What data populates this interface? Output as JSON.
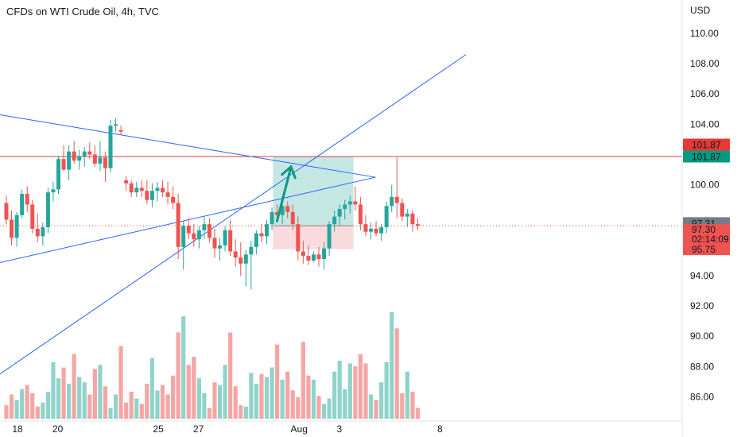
{
  "header": {
    "title": "CFDs on WTI Crude Oil, 4h, TVC"
  },
  "colors": {
    "up": "#26a69a",
    "down": "#ef5350",
    "trend": "#2962ff",
    "resistance": "#e53935",
    "target_zone": "#b2dfdb",
    "stop_zone": "#f8d7da"
  },
  "chart_data": {
    "type": "candlestick",
    "currency": "USD",
    "y_ticks": [
      "110.00",
      "108.00",
      "106.00",
      "104.00",
      "100.00",
      "94.00",
      "92.00",
      "90.00",
      "88.00",
      "86.00"
    ],
    "ylim": [
      84.4,
      112.2
    ],
    "x_ticks": [
      {
        "label": "18",
        "d": 18
      },
      {
        "label": "20",
        "d": 20
      },
      {
        "label": "25",
        "d": 25
      },
      {
        "label": "27",
        "d": 27
      },
      {
        "label": "Aug",
        "d": 32
      },
      {
        "label": "3",
        "d": 34
      },
      {
        "label": "8",
        "d": 39
      }
    ],
    "price_labels": [
      {
        "label": "101.87",
        "value": 101.87,
        "kind": "resistance"
      },
      {
        "label": "101.87",
        "value": 101.87,
        "kind": "up"
      },
      {
        "label": "97.31",
        "value": 97.31,
        "kind": "close"
      },
      {
        "label": "97.30",
        "value": 97.3,
        "kind": "down",
        "sub": "02:14:09"
      },
      {
        "label": "95.75",
        "value": 95.75,
        "kind": "down"
      }
    ],
    "resistance_level": 101.87,
    "current_price": 97.3,
    "trendlines": [
      {
        "name": "upper",
        "p1": {
          "d": 13.6,
          "y": 105.4
        },
        "p2": {
          "d": 35.8,
          "y": 100.5
        }
      },
      {
        "name": "lower",
        "p1": {
          "d": 13.6,
          "y": 93.8
        },
        "p2": {
          "d": 35.8,
          "y": 100.5
        }
      },
      {
        "name": "channel",
        "p1": {
          "d": 13.6,
          "y": 84.3
        },
        "p2": {
          "d": 40.3,
          "y": 108.6
        }
      }
    ],
    "position": {
      "d_start": 30.7,
      "d_end": 34.7,
      "entry": 97.3,
      "target": 101.87,
      "stop": 95.75
    },
    "arrow": {
      "from": {
        "d": 30.9,
        "y": 97.6
      },
      "to": {
        "d": 31.6,
        "y": 101.2
      }
    },
    "candles": [
      [
        98.8,
        99.3,
        97.4,
        97.7
      ],
      [
        97.7,
        98.3,
        96.0,
        96.5
      ],
      [
        96.5,
        98.2,
        95.9,
        98.0
      ],
      [
        98.0,
        99.7,
        97.8,
        99.4
      ],
      [
        99.4,
        99.9,
        98.2,
        98.7
      ],
      [
        98.7,
        99.0,
        96.8,
        97.1
      ],
      [
        97.1,
        98.1,
        96.2,
        96.6
      ],
      [
        96.6,
        97.5,
        96.0,
        97.2
      ],
      [
        97.2,
        99.8,
        96.8,
        99.5
      ],
      [
        99.5,
        100.2,
        98.9,
        99.7
      ],
      [
        99.7,
        101.9,
        99.4,
        101.7
      ],
      [
        101.7,
        102.6,
        100.9,
        101.0
      ],
      [
        101.0,
        102.6,
        100.3,
        102.2
      ],
      [
        102.2,
        102.9,
        101.4,
        101.6
      ],
      [
        101.6,
        102.3,
        101.0,
        101.9
      ],
      [
        101.9,
        102.5,
        101.2,
        102.2
      ],
      [
        102.2,
        102.8,
        101.7,
        102.0
      ],
      [
        102.0,
        102.6,
        101.2,
        101.4
      ],
      [
        101.4,
        102.9,
        100.9,
        101.8
      ],
      [
        101.8,
        102.2,
        100.2,
        101.1
      ],
      [
        101.1,
        104.3,
        100.8,
        103.9
      ],
      [
        103.9,
        104.4,
        103.5,
        104.0
      ],
      [
        103.6,
        103.9,
        103.3,
        103.5
      ],
      [
        100.3,
        100.6,
        99.6,
        100.1
      ],
      [
        100.1,
        100.3,
        99.2,
        99.5
      ],
      [
        99.5,
        100.2,
        99.2,
        99.8
      ],
      [
        99.8,
        100.3,
        99.2,
        99.6
      ],
      [
        99.6,
        100.3,
        98.7,
        99.0
      ],
      [
        99.0,
        100.1,
        98.5,
        99.6
      ],
      [
        99.6,
        100.2,
        98.9,
        99.8
      ],
      [
        99.8,
        100.3,
        99.2,
        99.5
      ],
      [
        99.5,
        100.2,
        98.7,
        99.2
      ],
      [
        99.2,
        99.9,
        98.4,
        98.8
      ],
      [
        98.8,
        99.4,
        95.1,
        95.9
      ],
      [
        95.9,
        97.6,
        94.4,
        97.3
      ],
      [
        97.3,
        97.8,
        96.4,
        96.8
      ],
      [
        96.8,
        97.4,
        95.9,
        96.4
      ],
      [
        96.4,
        97.3,
        95.8,
        97.0
      ],
      [
        97.0,
        97.9,
        96.4,
        97.4
      ],
      [
        97.4,
        97.8,
        96.2,
        96.5
      ],
      [
        96.5,
        97.1,
        95.2,
        95.8
      ],
      [
        95.8,
        96.5,
        95.0,
        96.0
      ],
      [
        96.0,
        97.3,
        95.6,
        97.0
      ],
      [
        97.0,
        97.7,
        95.3,
        95.6
      ],
      [
        95.6,
        96.4,
        94.6,
        95.2
      ],
      [
        95.2,
        96.2,
        94.0,
        94.8
      ],
      [
        94.8,
        95.7,
        93.3,
        95.4
      ],
      [
        95.4,
        96.3,
        93.1,
        95.9
      ],
      [
        95.9,
        97.0,
        95.4,
        96.8
      ],
      [
        96.8,
        97.4,
        96.2,
        96.6
      ],
      [
        96.6,
        97.7,
        96.1,
        97.4
      ],
      [
        97.4,
        98.5,
        97.0,
        98.2
      ],
      [
        98.2,
        98.7,
        97.5,
        98.0
      ],
      [
        98.0,
        98.9,
        97.4,
        98.6
      ],
      [
        98.6,
        98.9,
        97.8,
        98.2
      ],
      [
        98.2,
        98.7,
        97.0,
        97.4
      ],
      [
        97.4,
        97.9,
        95.0,
        95.6
      ],
      [
        95.6,
        96.3,
        94.8,
        95.3
      ],
      [
        95.3,
        96.0,
        94.7,
        95.0
      ],
      [
        95.0,
        95.6,
        94.9,
        95.4
      ],
      [
        95.4,
        95.9,
        94.6,
        95.1
      ],
      [
        95.1,
        96.2,
        94.4,
        95.8
      ],
      [
        95.8,
        97.6,
        95.3,
        97.4
      ],
      [
        97.4,
        98.3,
        96.9,
        97.9
      ],
      [
        97.9,
        98.7,
        97.3,
        98.4
      ],
      [
        98.4,
        99.0,
        97.7,
        98.7
      ],
      [
        98.7,
        99.3,
        98.1,
        98.9
      ],
      [
        98.9,
        99.9,
        98.3,
        98.7
      ],
      [
        98.7,
        99.2,
        97.0,
        97.4
      ],
      [
        97.4,
        98.0,
        96.6,
        96.9
      ],
      [
        96.9,
        97.5,
        96.4,
        97.1
      ],
      [
        97.1,
        97.6,
        96.6,
        96.8
      ],
      [
        96.8,
        97.4,
        96.3,
        97.2
      ],
      [
        97.2,
        98.9,
        96.8,
        98.6
      ],
      [
        98.6,
        100.0,
        98.2,
        99.2
      ],
      [
        99.2,
        101.8,
        97.8,
        98.8
      ],
      [
        98.8,
        99.1,
        97.6,
        97.9
      ],
      [
        97.9,
        98.4,
        97.2,
        98.1
      ],
      [
        98.1,
        98.3,
        96.9,
        97.4
      ],
      [
        97.4,
        97.8,
        97.0,
        97.3
      ]
    ],
    "volumes": [
      10,
      18,
      14,
      22,
      25,
      19,
      9,
      12,
      20,
      42,
      30,
      38,
      26,
      48,
      31,
      27,
      18,
      37,
      40,
      24,
      8,
      18,
      54,
      12,
      20,
      15,
      11,
      26,
      45,
      21,
      25,
      18,
      32,
      64,
      76,
      40,
      46,
      30,
      19,
      8,
      27,
      25,
      40,
      64,
      24,
      10,
      9,
      34,
      26,
      33,
      31,
      38,
      55,
      29,
      35,
      21,
      16,
      57,
      32,
      29,
      17,
      11,
      15,
      35,
      43,
      22,
      41,
      39,
      48,
      41,
      18,
      14,
      27,
      42,
      79,
      67,
      19,
      35,
      20,
      8
    ]
  }
}
